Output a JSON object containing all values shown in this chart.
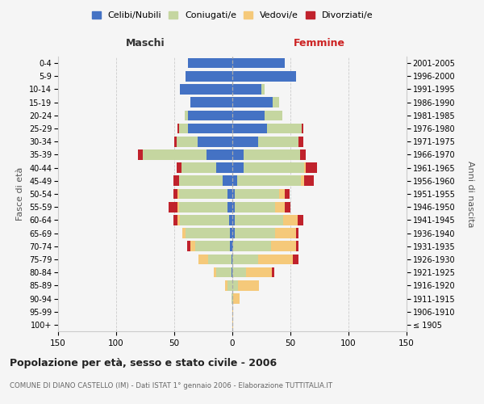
{
  "age_groups": [
    "100+",
    "95-99",
    "90-94",
    "85-89",
    "80-84",
    "75-79",
    "70-74",
    "65-69",
    "60-64",
    "55-59",
    "50-54",
    "45-49",
    "40-44",
    "35-39",
    "30-34",
    "25-29",
    "20-24",
    "15-19",
    "10-14",
    "5-9",
    "0-4"
  ],
  "birth_years": [
    "≤ 1905",
    "1906-1910",
    "1911-1915",
    "1916-1920",
    "1921-1925",
    "1926-1930",
    "1931-1935",
    "1936-1940",
    "1941-1945",
    "1946-1950",
    "1951-1955",
    "1956-1960",
    "1961-1965",
    "1966-1970",
    "1971-1975",
    "1976-1980",
    "1981-1985",
    "1986-1990",
    "1991-1995",
    "1996-2000",
    "2001-2005"
  ],
  "male": {
    "celibi": [
      0,
      0,
      0,
      0,
      1,
      1,
      2,
      2,
      3,
      4,
      4,
      8,
      14,
      22,
      30,
      38,
      38,
      36,
      45,
      40,
      38
    ],
    "coniugati": [
      0,
      0,
      1,
      4,
      13,
      20,
      30,
      38,
      42,
      42,
      42,
      38,
      30,
      55,
      18,
      8,
      3,
      0,
      0,
      0,
      0
    ],
    "vedovi": [
      0,
      0,
      0,
      2,
      2,
      8,
      4,
      3,
      2,
      1,
      1,
      0,
      0,
      0,
      0,
      0,
      0,
      0,
      0,
      0,
      0
    ],
    "divorziati": [
      0,
      0,
      0,
      0,
      0,
      0,
      3,
      0,
      4,
      8,
      4,
      5,
      4,
      4,
      2,
      1,
      0,
      0,
      0,
      0,
      0
    ]
  },
  "female": {
    "nubili": [
      0,
      0,
      0,
      0,
      0,
      0,
      1,
      2,
      2,
      2,
      2,
      4,
      10,
      10,
      22,
      30,
      28,
      35,
      25,
      55,
      45
    ],
    "coniugate": [
      0,
      0,
      1,
      5,
      12,
      22,
      32,
      35,
      42,
      35,
      38,
      55,
      52,
      48,
      35,
      30,
      15,
      5,
      3,
      0,
      0
    ],
    "vedove": [
      1,
      1,
      5,
      18,
      22,
      30,
      22,
      18,
      12,
      8,
      5,
      3,
      1,
      0,
      0,
      0,
      0,
      0,
      0,
      0,
      0
    ],
    "divorziate": [
      0,
      0,
      0,
      0,
      2,
      5,
      2,
      2,
      5,
      5,
      4,
      8,
      10,
      5,
      4,
      1,
      0,
      0,
      0,
      0,
      0
    ]
  },
  "colors": {
    "celibi_nubili": "#4472C4",
    "coniugati": "#C5D6A0",
    "vedovi": "#F5C97A",
    "divorziati": "#C0222C"
  },
  "xlim": 150,
  "title": "Popolazione per età, sesso e stato civile - 2006",
  "subtitle": "COMUNE DI DIANO CASTELLO (IM) - Dati ISTAT 1° gennaio 2006 - Elaborazione TUTTITALIA.IT",
  "xlabel_left": "Maschi",
  "xlabel_right": "Femmine",
  "ylabel_left": "Fasce di età",
  "ylabel_right": "Anni di nascita",
  "legend_labels": [
    "Celibi/Nubili",
    "Coniugati/e",
    "Vedovi/e",
    "Divorziati/e"
  ],
  "bg_color": "#f5f5f5",
  "grid_color": "#cccccc"
}
